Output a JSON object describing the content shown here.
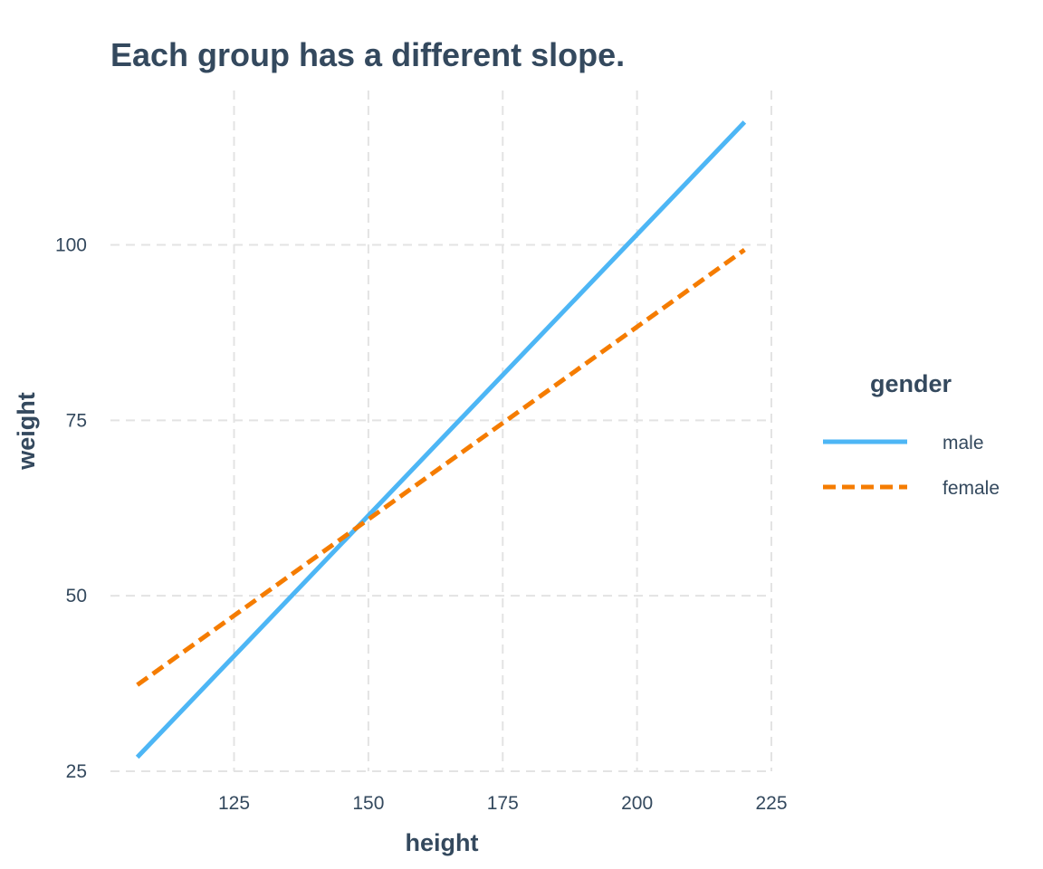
{
  "chart_data": {
    "type": "line",
    "title": "Each group has a different slope.",
    "xlabel": "height",
    "ylabel": "weight",
    "xlim": [
      102,
      225
    ],
    "ylim": [
      25,
      122
    ],
    "x_ticks": [
      125,
      150,
      175,
      200,
      225
    ],
    "y_ticks": [
      25,
      50,
      75,
      100
    ],
    "grid": true,
    "legend": {
      "title": "gender",
      "position": "right"
    },
    "series": [
      {
        "name": "male",
        "color": "#4db6f5",
        "line_style": "solid",
        "x": [
          107,
          220
        ],
        "y": [
          27.0,
          117.5
        ]
      },
      {
        "name": "female",
        "color": "#f57c00",
        "line_style": "dashed",
        "x": [
          107,
          220
        ],
        "y": [
          37.3,
          99.3
        ]
      }
    ]
  }
}
